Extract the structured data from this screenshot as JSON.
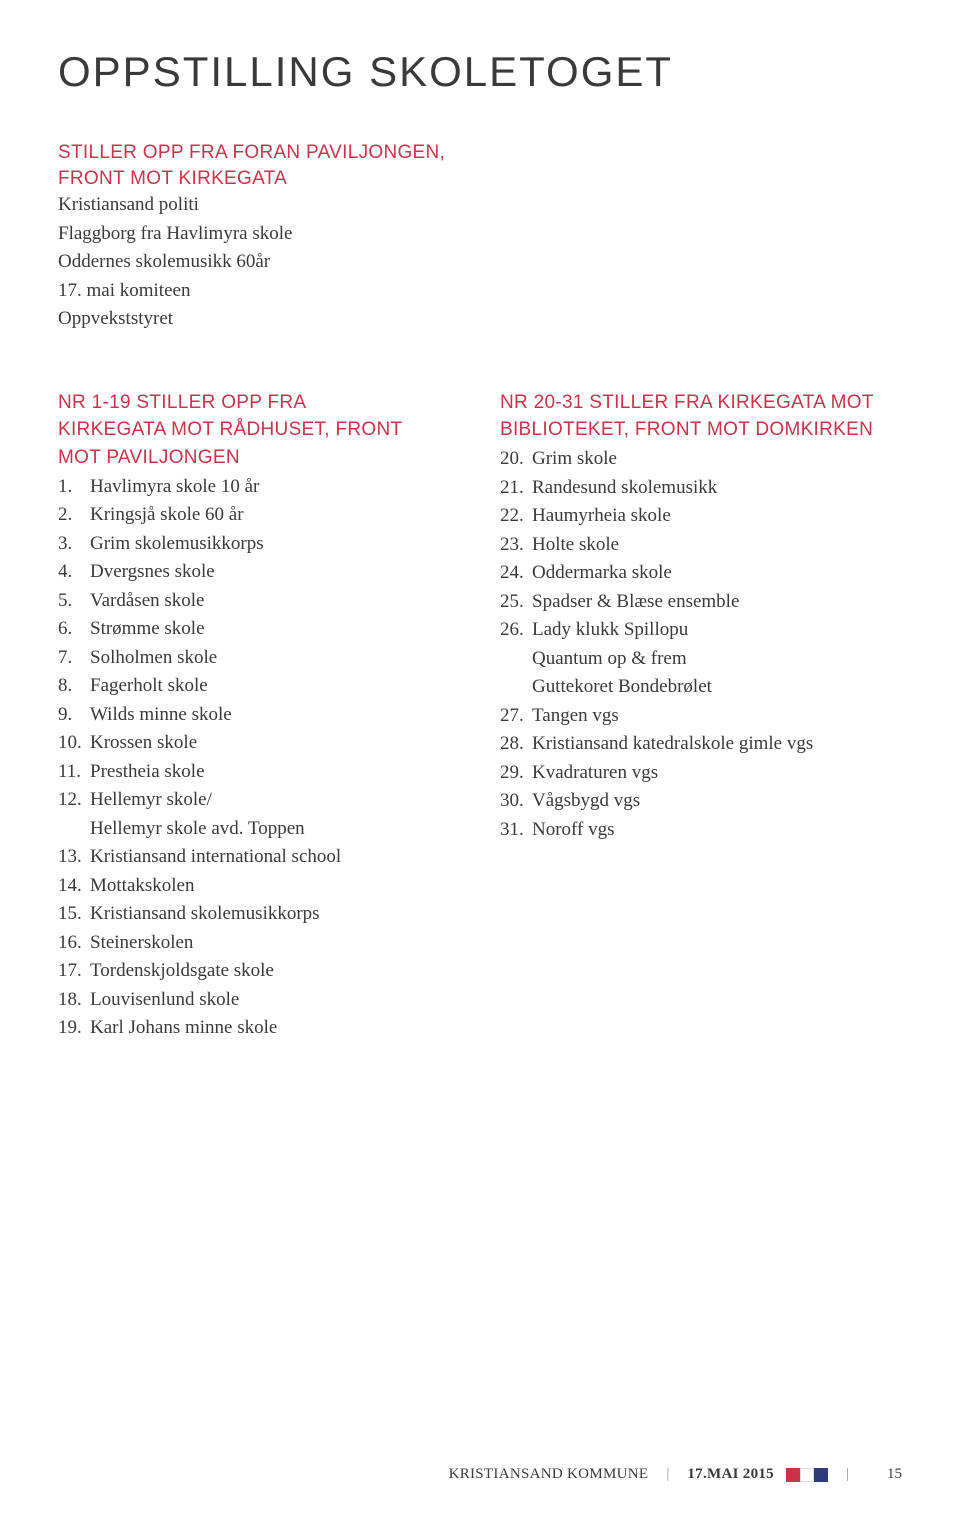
{
  "title": "OPPSTILLING SKOLETOGET",
  "intro": {
    "heading_line1": "STILLER OPP FRA FORAN PAVILJONGEN,",
    "heading_line2": "FRONT MOT KIRKEGATA",
    "items": [
      "Kristiansand politi",
      "Flaggborg fra Havlimyra skole",
      "Oddernes skolemusikk 60år",
      "17. mai komiteen",
      "Oppvekststyret"
    ]
  },
  "col_left": {
    "heading_line1": "NR 1-19 STILLER OPP FRA",
    "heading_line2": "KIRKEGATA MOT RÅDHUSET, FRONT",
    "heading_line3": "MOT PAVILJONGEN",
    "items": [
      {
        "num": "1.",
        "text": "Havlimyra skole 10 år"
      },
      {
        "num": "2.",
        "text": "Kringsjå skole 60 år"
      },
      {
        "num": "3.",
        "text": "Grim skolemusikkorps"
      },
      {
        "num": "4.",
        "text": "Dvergsnes skole"
      },
      {
        "num": "5.",
        "text": "Vardåsen skole"
      },
      {
        "num": "6.",
        "text": "Strømme skole"
      },
      {
        "num": "7.",
        "text": "Solholmen skole"
      },
      {
        "num": "8.",
        "text": "Fagerholt skole"
      },
      {
        "num": "9.",
        "text": "Wilds minne skole"
      },
      {
        "num": "10.",
        "text": "Krossen skole"
      },
      {
        "num": "11.",
        "text": "Prestheia skole"
      },
      {
        "num": "12.",
        "text": "Hellemyr skole/"
      },
      {
        "num": "",
        "text": "Hellemyr skole avd. Toppen",
        "sub": true
      },
      {
        "num": "13.",
        "text": "Kristiansand international school"
      },
      {
        "num": "14.",
        "text": "Mottakskolen"
      },
      {
        "num": "15.",
        "text": "Kristiansand skolemusikkorps"
      },
      {
        "num": "16.",
        "text": "Steinerskolen"
      },
      {
        "num": "17.",
        "text": "Tordenskjoldsgate skole"
      },
      {
        "num": "18.",
        "text": "Louvisenlund skole"
      },
      {
        "num": "19.",
        "text": "Karl Johans minne skole"
      }
    ]
  },
  "col_right": {
    "heading_line1": "NR 20-31 STILLER FRA KIRKEGATA MOT",
    "heading_line2": "BIBLIOTEKET, FRONT MOT DOMKIRKEN",
    "items": [
      {
        "num": "20.",
        "text": "Grim skole"
      },
      {
        "num": "21.",
        "text": "Randesund skolemusikk"
      },
      {
        "num": "22.",
        "text": "Haumyrheia skole"
      },
      {
        "num": "23.",
        "text": "Holte skole"
      },
      {
        "num": "24.",
        "text": "Oddermarka skole"
      },
      {
        "num": "25.",
        "text": "Spadser & Blæse ensemble"
      },
      {
        "num": "26.",
        "text": "Lady klukk Spillopu"
      },
      {
        "num": "",
        "text": "Quantum op & frem",
        "sub": true
      },
      {
        "num": "",
        "text": "Guttekoret Bondebrølet",
        "sub": true
      },
      {
        "num": "27.",
        "text": "Tangen vgs"
      },
      {
        "num": "28.",
        "text": "Kristiansand katedralskole gimle vgs"
      },
      {
        "num": "29.",
        "text": "Kvadraturen vgs"
      },
      {
        "num": "30.",
        "text": "Vågsbygd vgs"
      },
      {
        "num": "31.",
        "text": "Noroff vgs"
      }
    ]
  },
  "footer": {
    "org": "KRISTIANSAND KOMMUNE",
    "date": "17.MAI 2015",
    "page_num": "15"
  },
  "colors": {
    "heading": "#c8344a",
    "text": "#3a3a3a",
    "bg": "#ffffff",
    "flag_red": "#c8344a",
    "flag_blue": "#2e3a7a"
  }
}
